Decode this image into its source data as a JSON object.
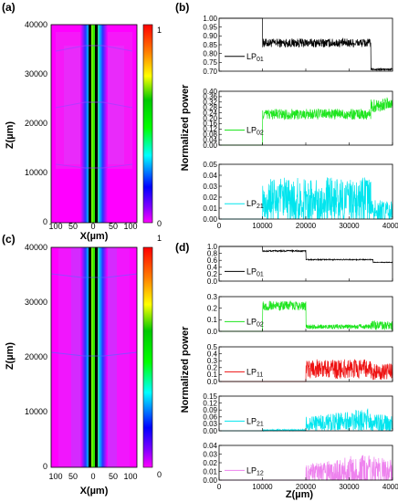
{
  "panels": [
    "(a)",
    "(b)",
    "(c)",
    "(d)"
  ],
  "maps": {
    "ylabel": "Z(µm)",
    "xlabel": "X(µm)",
    "y_ticks": [
      "40000",
      "30000",
      "20000",
      "10000",
      "0"
    ],
    "x_ticks": [
      "100",
      "50",
      "0",
      "50",
      "100"
    ],
    "colorbar": {
      "max_label": "1",
      "min_label": "0",
      "colormap": "jet",
      "background": "#ff00ff"
    }
  },
  "lines": {
    "ylabel": "Normalized power",
    "xlabel": "Z(µm)",
    "x_ticks": [
      "0",
      "10000",
      "20000",
      "30000",
      "40000"
    ]
  },
  "chart_data": [
    {
      "type": "line",
      "panel": "(b)",
      "xlim": [
        0,
        40000
      ],
      "subplots": [
        {
          "color": "#000000",
          "ylim": [
            0.7,
            1.0
          ],
          "y_ticks": [
            "1.00",
            "0.95",
            "0.90",
            "0.85",
            "0.80",
            "0.75",
            "0.70"
          ],
          "legend": {
            "base": "LP",
            "sub": "01",
            "position": "left"
          },
          "series": {
            "x": [
              0,
              10000,
              10000,
              35000,
              35000,
              40000
            ],
            "y": [
              1.0,
              1.0,
              0.86,
              0.86,
              0.71,
              0.71
            ],
            "noise": [
              0,
              0,
              0.025,
              0.025,
              0.006,
              0.006
            ]
          }
        },
        {
          "color": "#1ee51e",
          "ylim": [
            0,
            0.4
          ],
          "y_ticks": [
            "0.40",
            "0.36",
            "0.32",
            "0.28",
            "0.24",
            "0.20",
            "0.16",
            "0.12",
            "0.08",
            "0.04",
            "0.00"
          ],
          "legend": {
            "base": "LP",
            "sub": "02",
            "position": "left"
          },
          "series": {
            "x": [
              0,
              10000,
              10000,
              35000,
              35000,
              40000
            ],
            "y": [
              0,
              0,
              0.23,
              0.23,
              0.29,
              0.31
            ],
            "noise": [
              0,
              0,
              0.04,
              0.04,
              0.05,
              0.05
            ]
          }
        },
        {
          "color": "#00e5ee",
          "ylim": [
            0,
            0.05
          ],
          "y_ticks": [
            "0.05",
            "0.04",
            "0.03",
            "0.02",
            "0.01",
            "0.00"
          ],
          "legend": {
            "base": "LP",
            "sub": "21",
            "position": "left"
          },
          "series": {
            "x": [
              0,
              10000,
              10000,
              35000,
              35000,
              40000
            ],
            "y": [
              0,
              0,
              0.016,
              0.016,
              0.008,
              0.006
            ],
            "noise": [
              0,
              0,
              0.022,
              0.022,
              0.01,
              0.01
            ]
          }
        }
      ]
    },
    {
      "type": "line",
      "panel": "(d)",
      "xlim": [
        0,
        40000
      ],
      "subplots": [
        {
          "color": "#000000",
          "ylim": [
            0,
            1.0
          ],
          "y_ticks": [
            "1.0",
            "0.8",
            "0.6",
            "0.4",
            "0.2",
            "0.0"
          ],
          "legend": {
            "base": "LP",
            "sub": "01",
            "position": "left"
          },
          "series": {
            "x": [
              0,
              10000,
              10000,
              20000,
              20000,
              35500,
              35500,
              40000
            ],
            "y": [
              1.0,
              1.0,
              0.87,
              0.87,
              0.62,
              0.62,
              0.54,
              0.54
            ],
            "noise": [
              0,
              0,
              0.02,
              0.02,
              0.015,
              0.015,
              0.01,
              0.01
            ]
          }
        },
        {
          "color": "#1ee51e",
          "ylim": [
            0,
            0.3
          ],
          "y_ticks": [
            "0.3",
            "0.2",
            "0.1",
            "0.0"
          ],
          "legend": {
            "base": "LP",
            "sub": "02",
            "position": "left"
          },
          "series": {
            "x": [
              0,
              10000,
              10000,
              20000,
              20000,
              35000,
              35000,
              40000
            ],
            "y": [
              0,
              0,
              0.22,
              0.22,
              0.04,
              0.04,
              0.05,
              0.05
            ],
            "noise": [
              0,
              0,
              0.04,
              0.04,
              0.02,
              0.02,
              0.04,
              0.04
            ]
          }
        },
        {
          "color": "#ee1111",
          "ylim": [
            0,
            0.5
          ],
          "y_ticks": [
            "0.5",
            "0.4",
            "0.3",
            "0.2",
            "0.1",
            "0.0"
          ],
          "legend": {
            "base": "LP",
            "sub": "11",
            "position": "left"
          },
          "series": {
            "x": [
              0,
              20000,
              20000,
              35000,
              35000,
              40000
            ],
            "y": [
              0,
              0,
              0.18,
              0.18,
              0.14,
              0.14
            ],
            "noise": [
              0,
              0,
              0.14,
              0.14,
              0.12,
              0.12
            ]
          }
        },
        {
          "color": "#00e5ee",
          "ylim": [
            0,
            0.15
          ],
          "y_ticks": [
            "0.15",
            "0.12",
            "0.09",
            "0.06",
            "0.03",
            "0.00"
          ],
          "legend": {
            "base": "LP",
            "sub": "21",
            "position": "left"
          },
          "series": {
            "x": [
              0,
              10000,
              10000,
              20000,
              20000,
              35000,
              35000,
              40000
            ],
            "y": [
              0,
              0,
              0.003,
              0.003,
              0.03,
              0.05,
              0.03,
              0.03
            ],
            "noise": [
              0,
              0,
              0.003,
              0.003,
              0.03,
              0.05,
              0.04,
              0.04
            ]
          }
        },
        {
          "color": "#ee82ee",
          "ylim": [
            0,
            0.04
          ],
          "y_ticks": [
            "0.04",
            "0.03",
            "0.02",
            "0.01",
            "0.00"
          ],
          "legend": {
            "base": "LP",
            "sub": "12",
            "position": "left"
          },
          "series": {
            "x": [
              0,
              20000,
              20000,
              35000,
              35000,
              40000
            ],
            "y": [
              0,
              0,
              0.006,
              0.01,
              0.01,
              0.008
            ],
            "noise": [
              0,
              0,
              0.012,
              0.022,
              0.018,
              0.016
            ]
          }
        }
      ]
    }
  ]
}
